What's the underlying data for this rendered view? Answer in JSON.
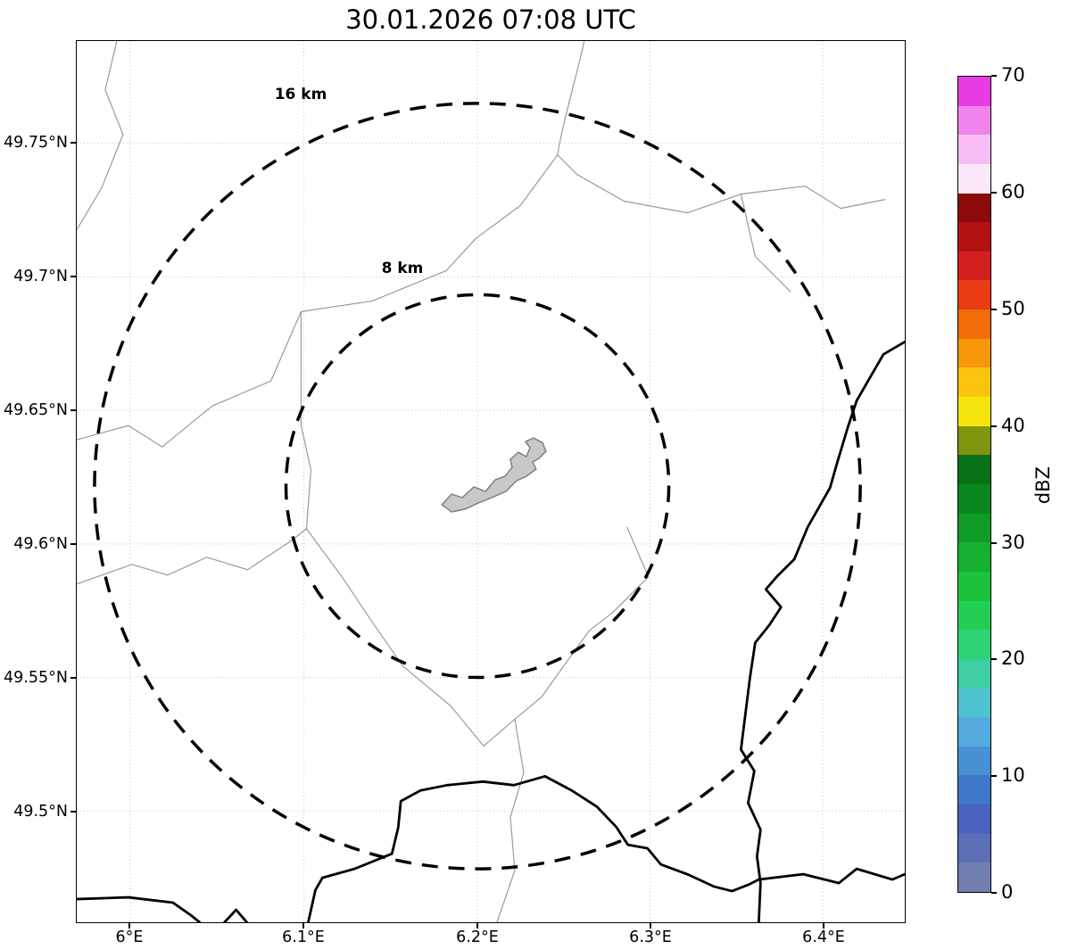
{
  "title": "30.01.2026 07:08 UTC",
  "map": {
    "x_ticks": [
      "6°E",
      "6.1°E",
      "6.2°E",
      "6.3°E",
      "6.4°E"
    ],
    "y_ticks": [
      "49.75°N",
      "49.7°N",
      "49.65°N",
      "49.6°N",
      "49.55°N",
      "49.5°N"
    ],
    "range_rings": [
      {
        "label": "16 km",
        "radius_km": 16
      },
      {
        "label": "8 km",
        "radius_km": 8
      }
    ]
  },
  "colorbar": {
    "label": "dBZ",
    "ticks": [
      "70",
      "60",
      "50",
      "40",
      "30",
      "20",
      "10",
      "0"
    ],
    "range_min": 0,
    "range_max": 70,
    "colors_top_to_bottom": [
      "#e83ce4",
      "#f184ec",
      "#f7bdf4",
      "#fbe9fb",
      "#8c0a0a",
      "#b31212",
      "#d21f1f",
      "#ea3b14",
      "#f36c08",
      "#f8960a",
      "#fbc40c",
      "#f5e50c",
      "#7e950d",
      "#067116",
      "#0a871e",
      "#0f9c26",
      "#15b02f",
      "#1cc23c",
      "#23cf52",
      "#2fd374",
      "#3fcda4",
      "#4ec2cf",
      "#54abdf",
      "#4791d4",
      "#3f78c8",
      "#4a63bc",
      "#5c6fb6",
      "#707fb0"
    ]
  }
}
